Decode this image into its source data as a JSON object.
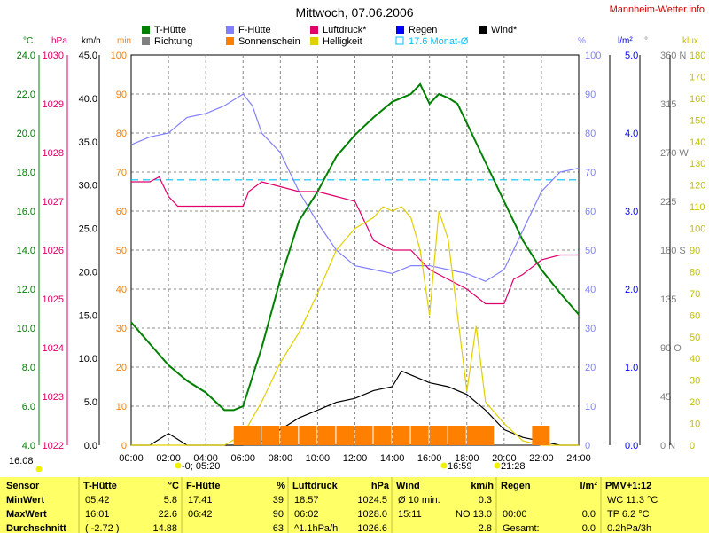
{
  "title": "Mittwoch, 07.06.2006",
  "brand": "Mannheim-Wetter.info",
  "legend": [
    {
      "label": "T-Hütte",
      "color": "#008000"
    },
    {
      "label": "F-Hütte",
      "color": "#8080ff"
    },
    {
      "label": "Luftdruck*",
      "color": "#e0006a"
    },
    {
      "label": "Regen",
      "color": "#0000ff"
    },
    {
      "label": "Wind*",
      "color": "#000000"
    },
    {
      "label": "Richtung",
      "color": "#808080"
    },
    {
      "label": "Sonnenschein",
      "color": "#ff8000"
    },
    {
      "label": "Helligkeit",
      "color": "#e0d000"
    },
    {
      "label": "17.6 Monat-Ø",
      "color": "#00c0ff"
    }
  ],
  "axes": {
    "temp": {
      "unit": "°C",
      "ticks": [
        "24.0",
        "22.0",
        "20.0",
        "18.0",
        "16.0",
        "14.0",
        "12.0",
        "10.0",
        "8.0",
        "6.0",
        "4.0"
      ],
      "color": "#008000"
    },
    "pressure": {
      "unit": "hPa",
      "ticks": [
        "1030",
        "1029",
        "1028",
        "1027",
        "1026",
        "1025",
        "1024",
        "1023",
        "1022"
      ],
      "color": "#e0006a"
    },
    "wind": {
      "unit": "km/h",
      "ticks": [
        "45.0",
        "40.0",
        "35.0",
        "30.0",
        "25.0",
        "20.0",
        "15.0",
        "10.0",
        "5.0",
        "0.0"
      ],
      "color": "#000000"
    },
    "sun": {
      "unit": "min",
      "ticks": [
        "100",
        "90",
        "80",
        "70",
        "60",
        "50",
        "40",
        "30",
        "20",
        "10",
        "0"
      ],
      "color": "#ff8000"
    },
    "humidity": {
      "unit": "%",
      "ticks": [
        "100",
        "90",
        "80",
        "70",
        "60",
        "50",
        "40",
        "30",
        "20",
        "10",
        "0"
      ],
      "color": "#8080ff"
    },
    "rain": {
      "unit": "l/m²",
      "ticks": [
        "5.0",
        "4.0",
        "3.0",
        "2.0",
        "1.0",
        "0.0"
      ],
      "color": "#0000ff"
    },
    "direction": {
      "unit": "°",
      "ticks": [
        "360 N",
        "315",
        "270 W",
        "225",
        "180 S",
        "135",
        "90 O",
        "45",
        "0 N"
      ],
      "color": "#808080"
    },
    "lux": {
      "unit": "klux",
      "ticks": [
        "180",
        "170",
        "160",
        "150",
        "140",
        "130",
        "120",
        "110",
        "100",
        "90",
        "80",
        "70",
        "60",
        "50",
        "40",
        "30",
        "20",
        "10",
        "0"
      ],
      "color": "#c0c000"
    },
    "time": [
      "00:00",
      "02:00",
      "04:00",
      "06:00",
      "08:00",
      "10:00",
      "12:00",
      "14:00",
      "16:00",
      "18:00",
      "20:00",
      "22:00",
      "24:00"
    ]
  },
  "markers": [
    {
      "label": "16:08",
      "kind": "moonset"
    },
    {
      "label": "-0; 05:20",
      "kind": "sunrise"
    },
    {
      "label": "16:59",
      "kind": "noon"
    },
    {
      "label": "21:28",
      "kind": "sunset"
    }
  ],
  "chart_data": {
    "type": "line",
    "title": "Mittwoch, 07.06.2006",
    "x_range": [
      "00:00",
      "24:00"
    ],
    "monthly_average_temp": 17.6,
    "series": [
      {
        "name": "T-Hütte",
        "unit": "°C",
        "color": "#008000",
        "x": [
          0,
          1,
          2,
          3,
          4,
          5,
          5.5,
          6,
          7,
          8,
          9,
          10,
          11,
          12,
          13,
          14,
          15,
          15.5,
          16,
          16.5,
          17,
          17.5,
          18,
          19,
          20,
          21,
          22,
          23,
          24
        ],
        "values": [
          10.3,
          9.2,
          8.1,
          7.3,
          6.7,
          5.8,
          5.8,
          6.0,
          9.0,
          12.5,
          15.5,
          17.0,
          18.8,
          19.9,
          20.8,
          21.6,
          22.0,
          22.5,
          21.5,
          22.0,
          21.8,
          21.5,
          20.5,
          18.5,
          16.5,
          14.5,
          13.0,
          11.8,
          10.7
        ]
      },
      {
        "name": "F-Hütte",
        "unit": "%",
        "color": "#8080ff",
        "x": [
          0,
          1,
          2,
          3,
          4,
          5,
          6,
          6.5,
          7,
          8,
          9,
          10,
          11,
          12,
          13,
          14,
          15,
          16,
          17,
          18,
          19,
          20,
          21,
          22,
          23,
          24
        ],
        "values": [
          77,
          79,
          80,
          84,
          85,
          87,
          90,
          87,
          80,
          75,
          65,
          57,
          50,
          46,
          45,
          44,
          46,
          46,
          45,
          44,
          42,
          45,
          55,
          65,
          70,
          71
        ]
      },
      {
        "name": "Luftdruck*",
        "unit": "hPa",
        "color": "#e0006a",
        "x": [
          0,
          1,
          1.5,
          2,
          2.5,
          3,
          4,
          5,
          6,
          6.3,
          7,
          8,
          9,
          10,
          11,
          12,
          13,
          14,
          15,
          16,
          17,
          18,
          19,
          20,
          20.5,
          21,
          22,
          23,
          24
        ],
        "values": [
          1027.4,
          1027.4,
          1027.5,
          1027.1,
          1026.9,
          1026.9,
          1026.9,
          1026.9,
          1026.9,
          1027.2,
          1027.4,
          1027.3,
          1027.2,
          1027.2,
          1027.1,
          1027.0,
          1026.2,
          1026.0,
          1026.0,
          1025.6,
          1025.4,
          1025.2,
          1024.9,
          1024.9,
          1025.4,
          1025.5,
          1025.8,
          1025.9,
          1025.9
        ]
      },
      {
        "name": "Wind*",
        "unit": "km/h",
        "color": "#000000",
        "x": [
          0,
          1,
          2,
          3,
          4,
          5,
          6,
          7,
          8,
          9,
          10,
          11,
          12,
          13,
          14,
          14.5,
          15,
          16,
          17,
          18,
          19,
          20,
          21,
          22,
          23,
          24
        ],
        "values": [
          0,
          0,
          1.5,
          0,
          0,
          0,
          0,
          0.5,
          2.0,
          3.5,
          4.5,
          5.5,
          6.0,
          7.0,
          7.5,
          9.5,
          9.0,
          8.0,
          7.5,
          6.5,
          4.5,
          2.0,
          1.0,
          0.5,
          0,
          0
        ]
      },
      {
        "name": "Helligkeit",
        "unit": "klux",
        "color": "#e0d000",
        "x": [
          0,
          5,
          6,
          7,
          8,
          9,
          10,
          11,
          12,
          13,
          13.5,
          14,
          14.5,
          15,
          15.5,
          16,
          16.5,
          17,
          17.5,
          18,
          18.5,
          19,
          20,
          21,
          22,
          24
        ],
        "values": [
          0,
          0,
          5,
          20,
          38,
          52,
          70,
          90,
          100,
          105,
          110,
          108,
          110,
          105,
          90,
          60,
          108,
          95,
          60,
          25,
          55,
          20,
          10,
          2,
          0,
          0
        ]
      },
      {
        "name": "Sonnenschein",
        "unit": "min",
        "color": "#ff8000",
        "x": [
          5.5,
          6,
          7,
          8,
          9,
          10,
          11,
          12,
          13,
          14,
          15,
          16,
          17,
          18,
          18.5,
          19,
          20,
          21,
          21.5
        ],
        "values": [
          5,
          5,
          5,
          5,
          5,
          5,
          5,
          5,
          5,
          5,
          5,
          5,
          5,
          5,
          5,
          0,
          0,
          0,
          5
        ]
      }
    ]
  },
  "summary": {
    "headers": [
      {
        "name": "Sensor",
        "unit": ""
      },
      {
        "name": "T-Hütte",
        "unit": "°C"
      },
      {
        "name": "F-Hütte",
        "unit": "%"
      },
      {
        "name": "Luftdruck",
        "unit": "hPa"
      },
      {
        "name": "Wind",
        "unit": "km/h"
      },
      {
        "name": "Regen",
        "unit": "l/m²"
      },
      {
        "name": "PMV+1:12",
        "unit": ""
      }
    ],
    "rows": [
      {
        "label": "MinWert",
        "cells": [
          [
            "05:42",
            "5.8"
          ],
          [
            "17:41",
            "39"
          ],
          [
            "18:57",
            "1024.5"
          ],
          [
            "Ø 10 min.",
            "0.3"
          ],
          [
            "",
            ""
          ],
          [
            "WC 11.3 °C",
            ""
          ]
        ]
      },
      {
        "label": "MaxWert",
        "cells": [
          [
            "16:01",
            "22.6"
          ],
          [
            "06:42",
            "90"
          ],
          [
            "06:02",
            "1028.0"
          ],
          [
            "15:11",
            "NO 13.0"
          ],
          [
            "00:00",
            "0.0"
          ],
          [
            "TP 6.2 °C",
            ""
          ]
        ]
      },
      {
        "label": "Durchschnitt",
        "cells": [
          [
            "( -2.72 )",
            "14.88"
          ],
          [
            "",
            "63"
          ],
          [
            "^1.1hPa/h",
            "1026.6"
          ],
          [
            "",
            "2.8"
          ],
          [
            "Gesamt:",
            "0.0"
          ],
          [
            "0.2hPa/3h",
            ""
          ]
        ]
      }
    ]
  }
}
